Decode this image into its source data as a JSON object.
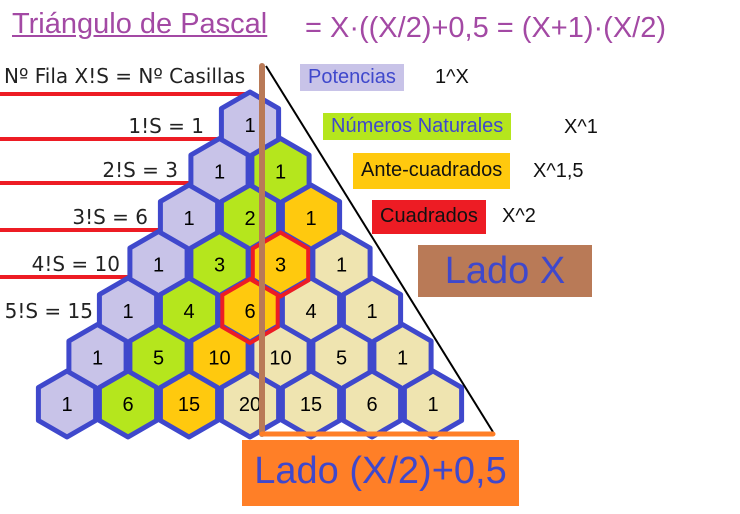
{
  "title": "Triángulo de Pascal",
  "formula": "= X·((X/2)+0,5 = (X+1)·(X/2)",
  "header": "Nº Fila X!S = Nº Casillas",
  "row_labels": [
    "1!S = 1",
    "2!S = 3",
    "3!S = 6",
    "4!S = 10",
    "5!S = 15"
  ],
  "legend": [
    {
      "label": "Potencias",
      "exponent": "1^X",
      "color": "#c8c3e8"
    },
    {
      "label": "Números Naturales",
      "exponent": "X^1",
      "color": "#b5e61d"
    },
    {
      "label": "Ante-cuadrados",
      "exponent": "X^1,5",
      "color": "#ffc90e"
    },
    {
      "label": "Cuadrados",
      "exponent": "X^2",
      "color": "#ed1c24"
    }
  ],
  "side_x": "Lado X",
  "side_half": "Lado (X/2)+0,5",
  "colors": {
    "potencias": "#c8c3e8",
    "naturales": "#b5e61d",
    "ante": "#ffc90e",
    "other": "#efe4b0",
    "border": "#3f48cc",
    "square_border": "#ed1c24",
    "brown": "#b97a57",
    "orange": "#ff7f27"
  },
  "triangle": [
    [
      {
        "v": "1",
        "c": "potencias"
      }
    ],
    [
      {
        "v": "1",
        "c": "potencias"
      },
      {
        "v": "1",
        "c": "naturales"
      }
    ],
    [
      {
        "v": "1",
        "c": "potencias"
      },
      {
        "v": "2",
        "c": "naturales"
      },
      {
        "v": "1",
        "c": "ante"
      }
    ],
    [
      {
        "v": "1",
        "c": "potencias"
      },
      {
        "v": "3",
        "c": "naturales"
      },
      {
        "v": "3",
        "c": "ante",
        "square": true
      },
      {
        "v": "1",
        "c": "other"
      }
    ],
    [
      {
        "v": "1",
        "c": "potencias"
      },
      {
        "v": "4",
        "c": "naturales"
      },
      {
        "v": "6",
        "c": "ante",
        "square": true
      },
      {
        "v": "4",
        "c": "other"
      },
      {
        "v": "1",
        "c": "other"
      }
    ],
    [
      {
        "v": "1",
        "c": "potencias"
      },
      {
        "v": "5",
        "c": "naturales"
      },
      {
        "v": "10",
        "c": "ante"
      },
      {
        "v": "10",
        "c": "other"
      },
      {
        "v": "5",
        "c": "other"
      },
      {
        "v": "1",
        "c": "other"
      }
    ],
    [
      {
        "v": "1",
        "c": "potencias"
      },
      {
        "v": "6",
        "c": "naturales"
      },
      {
        "v": "15",
        "c": "ante"
      },
      {
        "v": "20",
        "c": "other"
      },
      {
        "v": "15",
        "c": "other"
      },
      {
        "v": "6",
        "c": "other"
      },
      {
        "v": "1",
        "c": "other"
      }
    ]
  ]
}
